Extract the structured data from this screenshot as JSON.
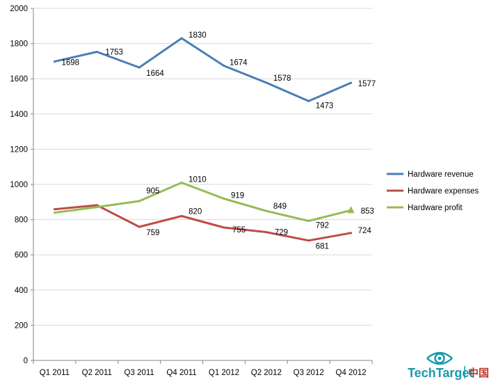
{
  "chart_data": {
    "type": "line",
    "categories": [
      "Q1 2011",
      "Q2 2011",
      "Q3 2011",
      "Q4 2011",
      "Q1 2012",
      "Q2 2012",
      "Q3 2012",
      "Q4 2012"
    ],
    "series": [
      {
        "name": "Hardware revenue",
        "color": "#4a7eb5",
        "values": [
          1698,
          1753,
          1664,
          1830,
          1674,
          1578,
          1473,
          1577
        ]
      },
      {
        "name": "Hardware expenses",
        "color": "#be4b48",
        "values": [
          859,
          882,
          759,
          820,
          755,
          729,
          681,
          724
        ]
      },
      {
        "name": "Hardware profit",
        "color": "#98b954",
        "values": [
          839,
          871,
          905,
          1010,
          919,
          849,
          792,
          853
        ]
      }
    ],
    "labels": [
      [
        "1698",
        "1753",
        "1664",
        "1830",
        "1674",
        "1578",
        "1473",
        "1577"
      ],
      [
        "",
        "",
        "759",
        "820",
        "755",
        "729",
        "681",
        "724"
      ],
      [
        "",
        "",
        "905",
        "1010",
        "919",
        "849",
        "792",
        "853"
      ]
    ],
    "ylim": [
      0,
      2000
    ],
    "yticks": [
      0,
      200,
      400,
      600,
      800,
      1000,
      1200,
      1400,
      1600,
      1800,
      2000
    ],
    "grid": true,
    "legend_position": "right",
    "last_point_marker": "triangle"
  },
  "logo": {
    "text": "TechTarget",
    "suffix": "中国",
    "icon": "eye-icon",
    "color": "#1b9aaa"
  }
}
